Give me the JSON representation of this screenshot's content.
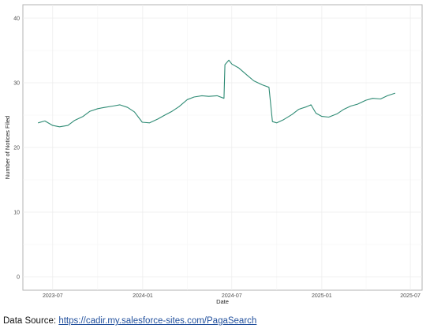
{
  "chart_data": {
    "type": "line",
    "title": "",
    "xlabel": "Date",
    "ylabel": "Number of Notices Filed",
    "x_ticks": [
      "2023-07",
      "2024-01",
      "2024-07",
      "2025-01",
      "2025-07"
    ],
    "y_ticks": [
      "0",
      "10",
      "20",
      "30",
      "40"
    ],
    "ylim": [
      0,
      40
    ],
    "xlim": [
      "2023-05-01",
      "2025-07-25"
    ],
    "grid": true,
    "legend": "none",
    "series": [
      {
        "color": "#2e8b74",
        "points": [
          [
            "2023-06-01",
            23.8
          ],
          [
            "2023-06-15",
            24.1
          ],
          [
            "2023-07-01",
            23.4
          ],
          [
            "2023-07-15",
            23.2
          ],
          [
            "2023-08-01",
            23.4
          ],
          [
            "2023-08-15",
            24.2
          ],
          [
            "2023-09-01",
            24.8
          ],
          [
            "2023-09-15",
            25.6
          ],
          [
            "2023-10-01",
            26.0
          ],
          [
            "2023-10-15",
            26.2
          ],
          [
            "2023-11-01",
            26.4
          ],
          [
            "2023-11-15",
            26.6
          ],
          [
            "2023-12-01",
            26.2
          ],
          [
            "2023-12-15",
            25.5
          ],
          [
            "2023-12-31",
            23.9
          ],
          [
            "2024-01-15",
            23.8
          ],
          [
            "2024-02-01",
            24.4
          ],
          [
            "2024-02-15",
            25.0
          ],
          [
            "2024-03-01",
            25.6
          ],
          [
            "2024-03-15",
            26.3
          ],
          [
            "2024-04-01",
            27.4
          ],
          [
            "2024-04-15",
            27.8
          ],
          [
            "2024-05-01",
            28.0
          ],
          [
            "2024-05-15",
            27.9
          ],
          [
            "2024-06-01",
            28.0
          ],
          [
            "2024-06-15",
            27.6
          ],
          [
            "2024-06-17",
            32.8
          ],
          [
            "2024-06-25",
            33.5
          ],
          [
            "2024-07-01",
            32.9
          ],
          [
            "2024-07-15",
            32.3
          ],
          [
            "2024-08-01",
            31.2
          ],
          [
            "2024-08-15",
            30.3
          ],
          [
            "2024-09-01",
            29.7
          ],
          [
            "2024-09-15",
            29.3
          ],
          [
            "2024-09-22",
            24.0
          ],
          [
            "2024-10-01",
            23.8
          ],
          [
            "2024-10-15",
            24.3
          ],
          [
            "2024-11-01",
            25.1
          ],
          [
            "2024-11-15",
            25.9
          ],
          [
            "2024-12-01",
            26.3
          ],
          [
            "2024-12-10",
            26.6
          ],
          [
            "2024-12-20",
            25.3
          ],
          [
            "2025-01-01",
            24.8
          ],
          [
            "2025-01-15",
            24.7
          ],
          [
            "2025-02-01",
            25.2
          ],
          [
            "2025-02-15",
            25.9
          ],
          [
            "2025-03-01",
            26.4
          ],
          [
            "2025-03-15",
            26.7
          ],
          [
            "2025-04-01",
            27.3
          ],
          [
            "2025-04-15",
            27.6
          ],
          [
            "2025-05-01",
            27.5
          ],
          [
            "2025-05-15",
            28.0
          ],
          [
            "2025-05-31",
            28.4
          ]
        ]
      }
    ]
  },
  "footer": {
    "source_label": "Data Source:",
    "source_link": "https://cadir.my.salesforce-sites.com/PagaSearch"
  }
}
